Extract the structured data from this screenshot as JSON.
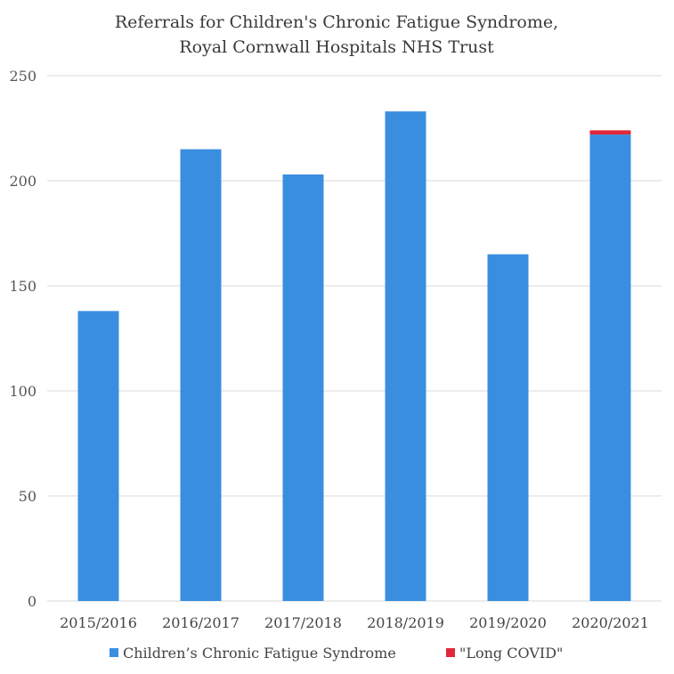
{
  "chart_data": {
    "type": "bar",
    "stacked": true,
    "title": "Referrals for Children's Chronic Fatigue Syndrome,",
    "subtitle": "Royal Cornwall Hospitals NHS Trust",
    "xlabel": "",
    "ylabel": "",
    "ylim": [
      0,
      250
    ],
    "yticks": [
      "0",
      "50",
      "100",
      "150",
      "200",
      "250"
    ],
    "grid": true,
    "legend_position": "bottom",
    "categories": [
      "2015/2016",
      "2016/2017",
      "2017/2018",
      "2018/2019",
      "2019/2020",
      "2020/2021"
    ],
    "series": [
      {
        "name": "Children’s Chronic Fatigue Syndrome",
        "color": "#3a8ee0",
        "values": [
          138,
          215,
          203,
          233,
          165,
          222
        ]
      },
      {
        "name": "\"Long COVID\"",
        "color": "#e0283a",
        "values": [
          0,
          0,
          0,
          0,
          0,
          2
        ]
      }
    ]
  }
}
